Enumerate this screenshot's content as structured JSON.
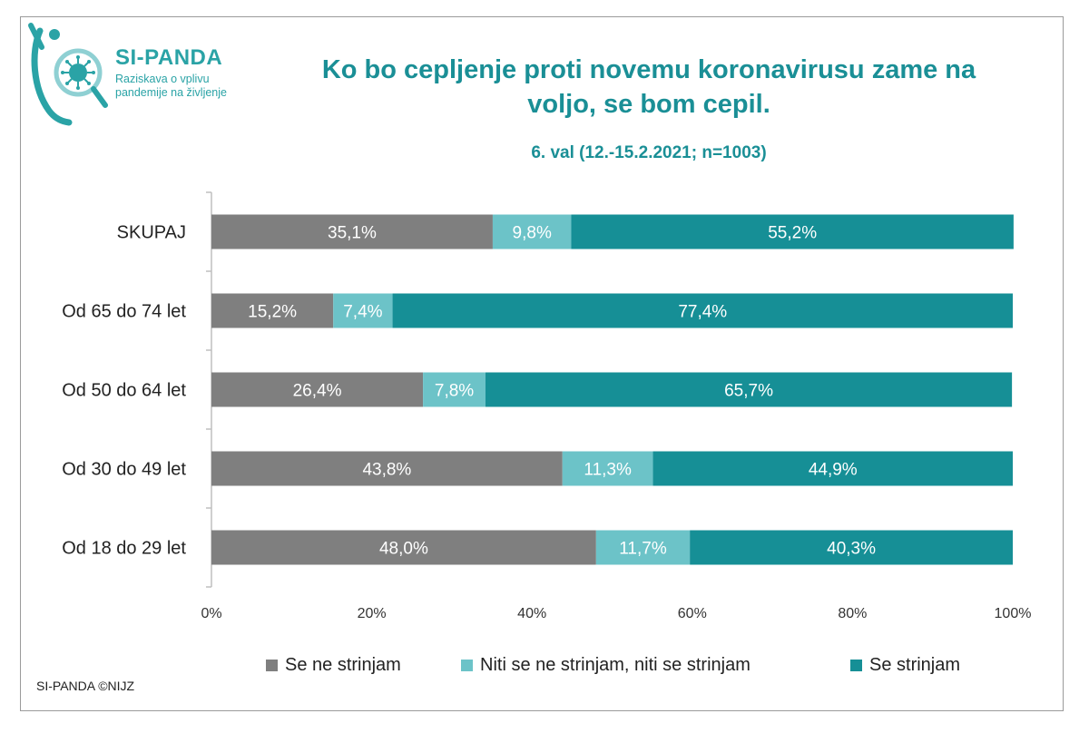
{
  "logo": {
    "title": "SI-PANDA",
    "subtitle_line1": "Raziskava o vplivu",
    "subtitle_line2": "pandemije na življenje"
  },
  "footer": "SI-PANDA ©NIJZ",
  "colors": {
    "disagree": "#7f7f7f",
    "neutral": "#6cc3c8",
    "agree": "#168f96",
    "title": "#1a8f96"
  },
  "chart_data": {
    "type": "bar",
    "orientation": "horizontal",
    "stacked": true,
    "title": "Ko bo cepljenje proti novemu koronavirusu zame na voljo, se bom cepil.",
    "title_line1": "Ko bo cepljenje proti novemu koronavirusu zame na",
    "title_line2": "voljo, se bom cepil.",
    "subtitle": "6. val (12.-15.2.2021; n=1003)",
    "categories": [
      "SKUPAJ",
      "Od 65 do 74 let",
      "Od 50 do 64 let",
      "Od 30 do 49 let",
      "Od 18 do 29 let"
    ],
    "series": [
      {
        "name": "Se ne strinjam",
        "values": [
          35.1,
          15.2,
          26.4,
          43.8,
          48.0
        ],
        "labels": [
          "35,1%",
          "15,2%",
          "26,4%",
          "43,8%",
          "48,0%"
        ]
      },
      {
        "name": "Niti se ne strinjam, niti se strinjam",
        "values": [
          9.8,
          7.4,
          7.8,
          11.3,
          11.7
        ],
        "labels": [
          "9,8%",
          "7,4%",
          "7,8%",
          "11,3%",
          "11,7%"
        ]
      },
      {
        "name": "Se strinjam",
        "values": [
          55.2,
          77.4,
          65.7,
          44.9,
          40.3
        ],
        "labels": [
          "55,2%",
          "77,4%",
          "65,7%",
          "44,9%",
          "40,3%"
        ]
      }
    ],
    "xlim": [
      0,
      100
    ],
    "xticks": [
      0,
      20,
      40,
      60,
      80,
      100
    ],
    "xtick_labels": [
      "0%",
      "20%",
      "40%",
      "60%",
      "80%",
      "100%"
    ],
    "grid": false,
    "legend_position": "bottom"
  }
}
